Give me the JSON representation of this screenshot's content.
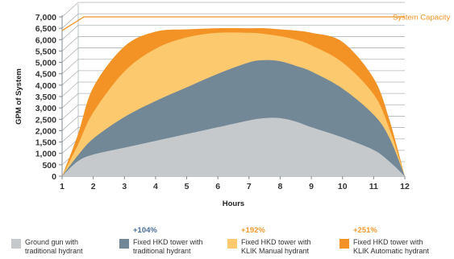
{
  "chart_data": {
    "type": "area",
    "title": "",
    "xlabel": "Hours",
    "ylabel": "GPM of System",
    "x": [
      1,
      1.5,
      2,
      3,
      4,
      5,
      6,
      7,
      7.5,
      8,
      8.5,
      9,
      10,
      11,
      11.5,
      12
    ],
    "xticks": [
      1,
      2,
      3,
      4,
      5,
      6,
      7,
      8,
      9,
      10,
      11,
      12
    ],
    "yticks": [
      0,
      500,
      1000,
      1500,
      2000,
      2500,
      3000,
      3500,
      4000,
      4500,
      5000,
      5500,
      6000,
      6500,
      7000
    ],
    "xlim": [
      1,
      12
    ],
    "ylim": [
      0,
      7000
    ],
    "grid": true,
    "system_capacity": {
      "label": "System Capacity",
      "value": 7000,
      "start_x": 1.7,
      "start_y": 6400
    },
    "series": [
      {
        "name": "Ground gun with traditional hydrant",
        "label": "Ground gun with\ntraditional hydrant",
        "pct": "",
        "color": "#c5c9cc",
        "values": [
          0,
          650,
          950,
          1250,
          1550,
          1850,
          2150,
          2450,
          2550,
          2550,
          2400,
          2150,
          1700,
          1150,
          650,
          0
        ]
      },
      {
        "name": "Fixed HKD tower with traditional hydrant",
        "label": "Fixed HKD tower with\ntraditional hydrant",
        "pct": "+104%",
        "color": "#728897",
        "values": [
          0,
          900,
          1650,
          2600,
          3300,
          3900,
          4500,
          5000,
          5100,
          5050,
          4850,
          4600,
          3850,
          2700,
          1700,
          0
        ]
      },
      {
        "name": "Fixed HKD tower with KLIK Manual hydrant",
        "label": "Fixed HKD tower with\nKLIK Manual hydrant",
        "pct": "+192%",
        "color": "#fdc96f",
        "values": [
          0,
          1350,
          2800,
          4600,
          5600,
          6100,
          6300,
          6300,
          6250,
          6150,
          6000,
          5750,
          5000,
          3600,
          2100,
          0
        ]
      },
      {
        "name": "Fixed HKD tower with KLIK Automatic hydrant",
        "label": "Fixed HKD tower with\nKLIK Automatic hydrant",
        "pct": "+251%",
        "color": "#f39325",
        "values": [
          0,
          1800,
          3900,
          5700,
          6350,
          6450,
          6500,
          6500,
          6500,
          6450,
          6400,
          6300,
          5900,
          4300,
          2500,
          0
        ]
      }
    ],
    "colors": {
      "grid": "#aeb4b7",
      "axis": "#7f8a90",
      "capacity": "#f39325",
      "pct_blue": "#4a6e9c",
      "pct_orange": "#f29a2e"
    }
  }
}
